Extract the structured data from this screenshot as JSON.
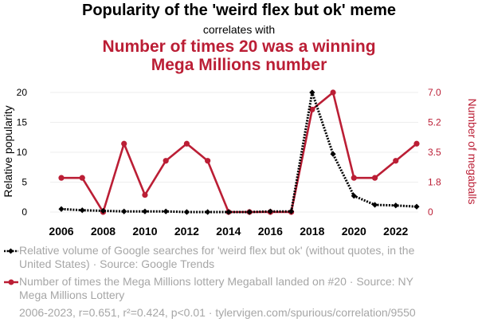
{
  "header": {
    "title": "Popularity of the 'weird flex but ok' meme",
    "correlates": "correlates with",
    "title2_line1": "Number of times 20 was a winning",
    "title2_line2": "Mega Millions number"
  },
  "legend": {
    "series1": "Relative volume of Google searches for 'weird flex but ok' (without quotes, in the United States) · Source: Google Trends",
    "series2": "Number of times the Mega Millions lottery Megaball landed on #20 · Source: NY Mega Millions Lottery"
  },
  "footer": "2006-2023, r=0.651, r²=0.424, p<0.01 · tylervigen.com/spurious/correlation/9550",
  "colors": {
    "meme": "#000000",
    "lottery": "#bb1e35",
    "muted": "#a6a6a6"
  },
  "chart_data": {
    "type": "line",
    "x": [
      2006,
      2007,
      2008,
      2009,
      2010,
      2011,
      2012,
      2013,
      2014,
      2015,
      2016,
      2017,
      2018,
      2019,
      2020,
      2021,
      2022,
      2023
    ],
    "xlim": [
      2006,
      2023
    ],
    "x_ticks": [
      "2006",
      "2008",
      "2010",
      "2012",
      "2014",
      "2016",
      "2018",
      "2020",
      "2022"
    ],
    "ylabel_left": "Relative popularity",
    "ylim_left": [
      0,
      20
    ],
    "y_ticks_left": [
      "0",
      "5",
      "10",
      "15",
      "20"
    ],
    "ylabel_right": "Number of megaballs",
    "ylim_right": [
      0,
      7
    ],
    "y_ticks_right": [
      {
        "value": 0,
        "label": "0"
      },
      {
        "value": 1.75,
        "label": "1.8"
      },
      {
        "value": 3.5,
        "label": "3.5"
      },
      {
        "value": 5.25,
        "label": "5.2"
      },
      {
        "value": 7,
        "label": "7.0"
      }
    ],
    "series": [
      {
        "name": "Relative volume of Google searches for 'weird flex but ok'",
        "axis": "left",
        "style": "dotted",
        "marker": "diamond",
        "values": [
          0.5,
          0.3,
          0.2,
          0.1,
          0.1,
          0.1,
          0.0,
          0.0,
          0.0,
          0.0,
          0.1,
          0.1,
          20,
          9.7,
          2.7,
          1.2,
          1.1,
          0.9
        ]
      },
      {
        "name": "Number of times the Mega Millions lottery Megaball landed on #20",
        "axis": "right",
        "style": "solid",
        "marker": "circle",
        "values": [
          2,
          2,
          0,
          4,
          1,
          3,
          4,
          3,
          0,
          0,
          0,
          0,
          6,
          7,
          2,
          2,
          3,
          4
        ]
      }
    ]
  }
}
